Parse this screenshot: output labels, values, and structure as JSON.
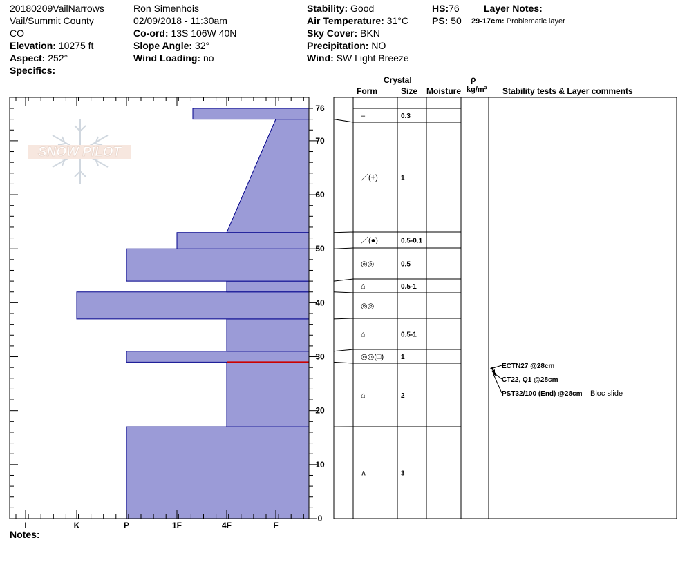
{
  "header": {
    "col1": {
      "site": "20180209VailNarrows",
      "location": "Vail/Summit County",
      "state": "CO",
      "elevation_label": "Elevation:",
      "elevation_value": "10275 ft",
      "aspect_label": "Aspect:",
      "aspect_value": "252°",
      "specifics_label": "Specifics:"
    },
    "col2": {
      "observer": "Ron Simenhois",
      "datetime": "02/09/2018 - 11:30am",
      "coord_label": "Co-ord:",
      "coord_value": "13S 106W 40N",
      "slope_label": "Slope Angle:",
      "slope_value": "32°",
      "wind_loading_label": "Wind Loading:",
      "wind_loading_value": "no"
    },
    "col3": {
      "stability_label": "Stability:",
      "stability_value": "Good",
      "air_temp_label": "Air Temperature:",
      "air_temp_value": "31°C",
      "sky_label": "Sky Cover:",
      "sky_value": "BKN",
      "precip_label": "Precipitation:",
      "precip_value": "NO",
      "wind_label": "Wind:",
      "wind_value": "SW Light Breeze"
    },
    "col4": {
      "hs_label": "HS:",
      "hs_value": "76",
      "ps_label": "PS:",
      "ps_value": "50"
    },
    "layer_notes": {
      "title": "Layer Notes:",
      "range": "29-17cm:",
      "text": "Problematic layer"
    }
  },
  "logo": {
    "text": "SNOW PILOT"
  },
  "table_headers": {
    "crystal": "Crystal",
    "form": "Form",
    "size": "Size",
    "moisture": "Moisture",
    "rho": "ρ",
    "density_unit": "kg/m³",
    "comments": "Stability tests & Layer comments"
  },
  "notes_label": "Notes:",
  "colors": {
    "fill": "#9b9bd7",
    "edge": "#00008b",
    "red": "#cc0000"
  },
  "chart_data": {
    "type": "bar",
    "orientation": "horizontal",
    "x_categories": [
      "I",
      "K",
      "P",
      "1F",
      "4F",
      "F"
    ],
    "x_direction": "hardness increases right-to-left",
    "ylim": [
      0,
      76
    ],
    "y_ticks": [
      0,
      10,
      20,
      30,
      40,
      50,
      60,
      70,
      76
    ],
    "hardness_profile": [
      {
        "bottom": 0,
        "top": 17,
        "hardness": "P"
      },
      {
        "bottom": 17,
        "top": 29,
        "hardness": "4F"
      },
      {
        "bottom": 29,
        "top": 31,
        "hardness": "P"
      },
      {
        "bottom": 31,
        "top": 37,
        "hardness": "4F"
      },
      {
        "bottom": 37,
        "top": 42,
        "hardness": "K"
      },
      {
        "bottom": 42,
        "top": 44,
        "hardness": "4F"
      },
      {
        "bottom": 44,
        "top": 50,
        "hardness": "P"
      },
      {
        "bottom": 50,
        "top": 53,
        "hardness": "1F-"
      },
      {
        "bottom": 53,
        "top": 74,
        "hardness": "4F→F (tapering)"
      },
      {
        "bottom": 74,
        "top": 76,
        "hardness": "1F+"
      }
    ],
    "weak_layer_cm": 29,
    "layers": [
      {
        "top": 76,
        "bottom": 74,
        "form": "–",
        "size": "0.3"
      },
      {
        "top": 74,
        "bottom": 53,
        "form": "／(+)",
        "size": "1"
      },
      {
        "top": 53,
        "bottom": 50,
        "form": "／(●)",
        "size": "0.5-0.1"
      },
      {
        "top": 50,
        "bottom": 44,
        "form": "◎◎",
        "size": "0.5"
      },
      {
        "top": 44,
        "bottom": 42,
        "form": "⌂",
        "size": "0.5-1"
      },
      {
        "top": 42,
        "bottom": 37,
        "form": "◎◎",
        "size": ""
      },
      {
        "top": 37,
        "bottom": 31,
        "form": "⌂",
        "size": "0.5-1"
      },
      {
        "top": 31,
        "bottom": 29,
        "form": "◎◎(□)",
        "size": "1"
      },
      {
        "top": 29,
        "bottom": 17,
        "form": "⌂",
        "size": "2"
      },
      {
        "top": 17,
        "bottom": 0,
        "form": "∧",
        "size": "3"
      }
    ],
    "tests": [
      {
        "label": "ECTN27 @28cm",
        "comment": ""
      },
      {
        "label": "CT22, Q1 @28cm",
        "comment": ""
      },
      {
        "label": "PST32/100 (End) @28cm",
        "comment": "Bloc slide"
      }
    ]
  }
}
